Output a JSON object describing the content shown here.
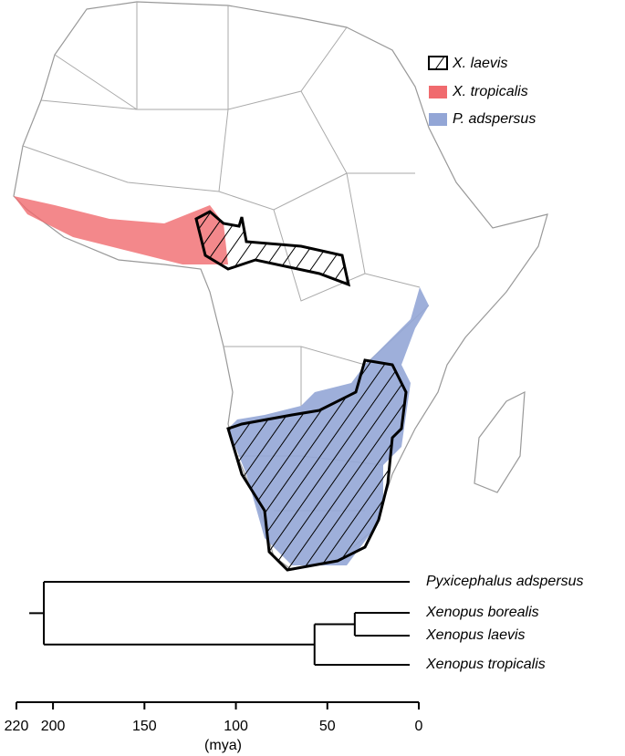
{
  "legend": {
    "items": [
      {
        "label": "X. laevis",
        "style": "hatched"
      },
      {
        "label": "X. tropicalis",
        "color": "#f06a6e"
      },
      {
        "label": "P. adspersus",
        "color": "#93a6d6"
      }
    ]
  },
  "tree": {
    "leaves": [
      "Pyxicephalus adspersus",
      "Xenopus borealis",
      "Xenopus laevis",
      "Xenopus tropicalis"
    ],
    "node_ages": [
      205,
      57,
      35
    ],
    "xlim": [
      220,
      0
    ],
    "xticks": [
      220,
      200,
      150,
      100,
      50,
      0
    ],
    "axis_label": "(mya)"
  }
}
